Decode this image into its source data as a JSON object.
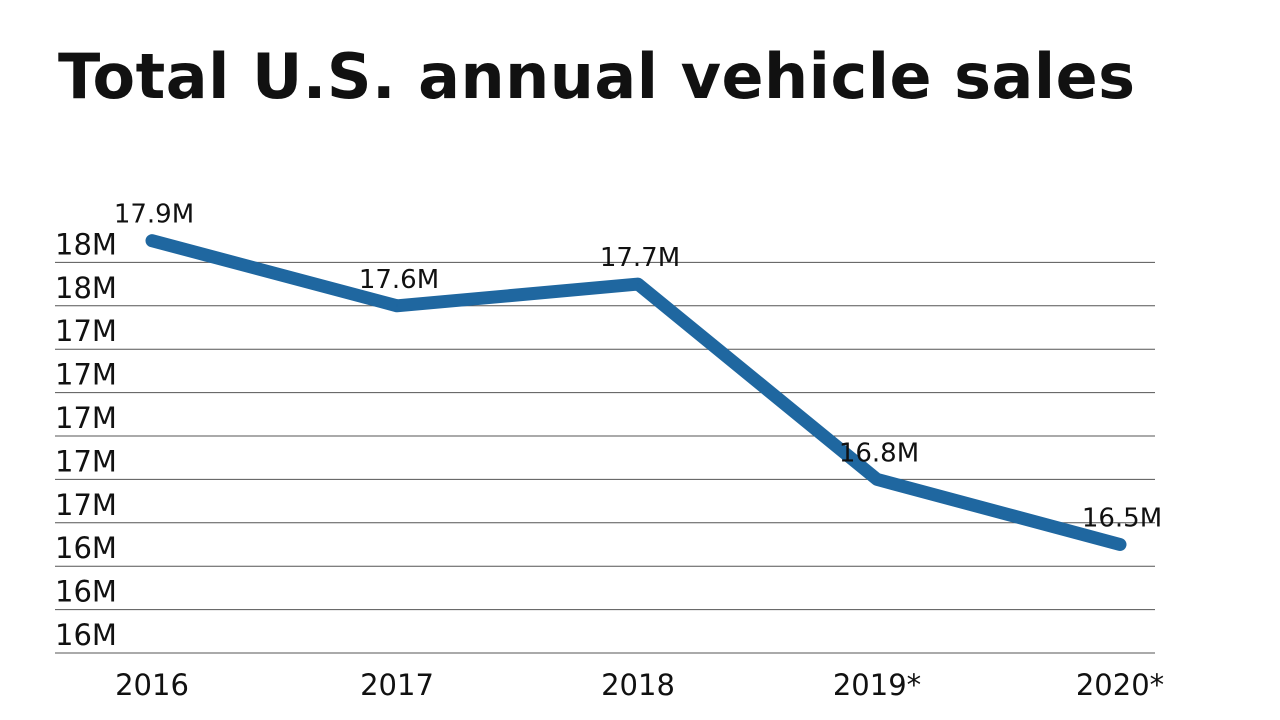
{
  "chart_data": {
    "type": "line",
    "title": "Total U.S. annual vehicle sales",
    "xlabel": "",
    "ylabel": "",
    "categories": [
      "2016",
      "2017",
      "2018",
      "2019*",
      "2020*"
    ],
    "values": [
      17.9,
      17.6,
      17.7,
      16.8,
      16.5
    ],
    "data_labels": [
      "17.9M",
      "17.6M",
      "17.7M",
      "16.8M",
      "16.5M"
    ],
    "unit": "M",
    "ylim": [
      16.0,
      18.0
    ],
    "yticks": [
      16.0,
      16.2,
      16.4,
      16.6,
      16.8,
      17.0,
      17.2,
      17.4,
      17.6,
      17.8
    ],
    "ytick_labels": [
      "16M",
      "16M",
      "16M",
      "17M",
      "17M",
      "17M",
      "17M",
      "17M",
      "18M",
      "18M"
    ],
    "grid": "horizontal",
    "legend": "none",
    "line_color": "#1f67a0",
    "grid_color": "#555555"
  }
}
